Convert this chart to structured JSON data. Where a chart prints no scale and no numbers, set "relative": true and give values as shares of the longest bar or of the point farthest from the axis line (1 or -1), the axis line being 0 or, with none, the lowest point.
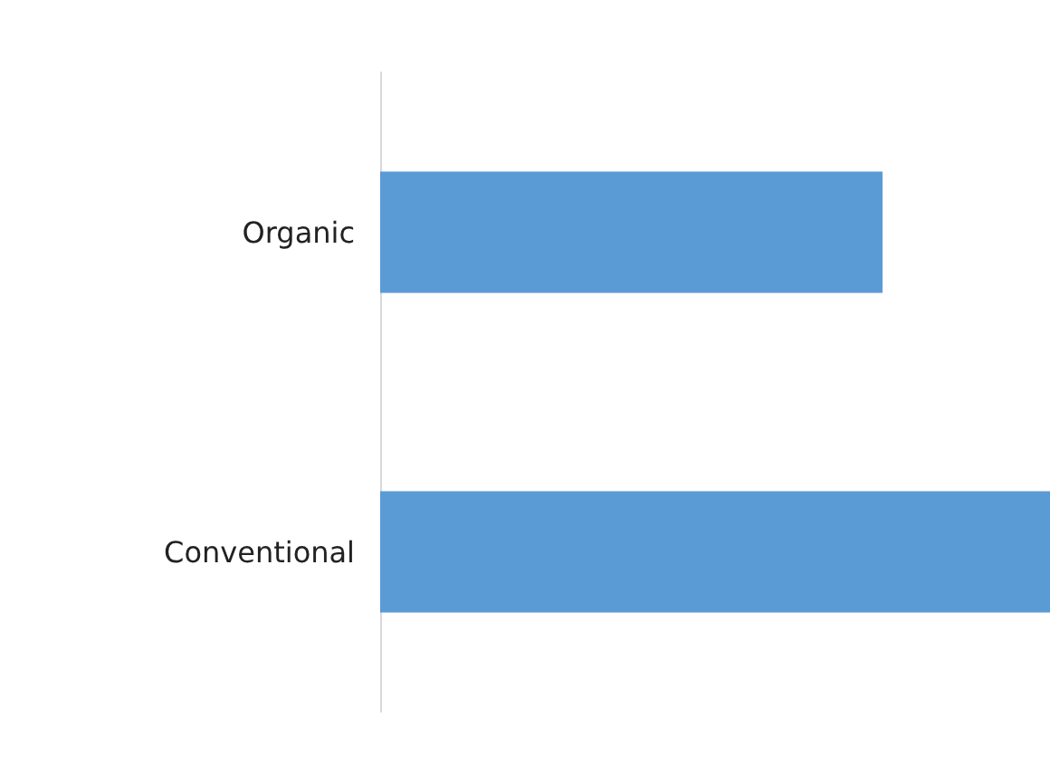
{
  "chart_data": {
    "type": "bar",
    "orientation": "horizontal",
    "relative": true,
    "categories": [
      "Organic",
      "Conventional"
    ],
    "values": [
      0.75,
      1
    ],
    "color": "#5b9bd5"
  }
}
